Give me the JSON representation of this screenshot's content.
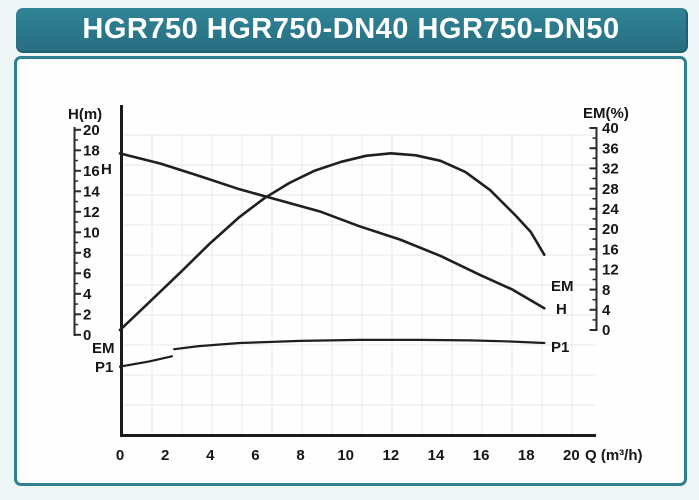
{
  "page": {
    "title": "HGR750 HGR750-DN40 HGR750-DN50"
  },
  "chart": {
    "left_axis": {
      "title": "H(m)",
      "ticks": [
        "20",
        "18",
        "16",
        "14",
        "12",
        "10",
        "8",
        "6",
        "4",
        "2",
        "0"
      ]
    },
    "right_axis": {
      "title": "EM(%)",
      "ticks": [
        "40",
        "36",
        "32",
        "28",
        "24",
        "20",
        "16",
        "12",
        "8",
        "4",
        "0"
      ]
    },
    "x_axis": {
      "ticks": [
        "0",
        "2",
        "4",
        "6",
        "8",
        "10",
        "12",
        "14",
        "16",
        "18",
        "20"
      ],
      "unit_label": "Q (m³/h)"
    },
    "curve_labels": {
      "h_left": "H",
      "em_left": "EM",
      "p1_left": "P1",
      "em_right": "EM",
      "h_right": "H",
      "p1_right": "P1"
    }
  },
  "colors": {
    "title_bar": "#2d7c8e",
    "panel_border": "#2e8191",
    "curve": "#1f1f1f",
    "axis": "#1b1b1b",
    "grid": "#e4eae6",
    "page_bg": "#eef6f5",
    "text": "#161616"
  },
  "chart_data": {
    "type": "line",
    "title": "HGR750 HGR750-DN40 HGR750-DN50",
    "xlabel": "Q (m³/h)",
    "xlim": [
      0,
      20
    ],
    "y_left": {
      "label": "H(m)",
      "lim": [
        0,
        20
      ]
    },
    "y_right": {
      "label": "EM(%)",
      "lim": [
        0,
        40
      ]
    },
    "grid": true,
    "legend": "curve-end labels (H, EM, P1 at both ends of each curve)",
    "series": [
      {
        "name": "H",
        "axis": "left",
        "unit": "m",
        "segments": [
          [
            [
              0,
              17.7
            ],
            [
              1.8,
              16.7
            ],
            [
              3.5,
              15.5
            ],
            [
              5.3,
              14.2
            ],
            [
              7.1,
              13.1
            ],
            [
              8.9,
              12.0
            ],
            [
              10.6,
              10.6
            ],
            [
              12.4,
              9.3
            ],
            [
              14.2,
              7.7
            ],
            [
              16.0,
              5.8
            ],
            [
              17.4,
              4.4
            ],
            [
              18.8,
              2.6
            ]
          ]
        ]
      },
      {
        "name": "EM",
        "axis": "right",
        "unit": "%",
        "segments": [
          [
            [
              0,
              0
            ],
            [
              1.3,
              5.5
            ],
            [
              2.7,
              11.5
            ],
            [
              4.0,
              17.2
            ],
            [
              5.3,
              22.4
            ],
            [
              6.4,
              26.1
            ],
            [
              7.5,
              29.1
            ],
            [
              8.6,
              31.5
            ],
            [
              9.8,
              33.3
            ],
            [
              10.9,
              34.5
            ],
            [
              12.0,
              35.0
            ],
            [
              13.1,
              34.6
            ],
            [
              14.2,
              33.5
            ],
            [
              15.3,
              31.3
            ],
            [
              16.4,
              27.7
            ],
            [
              17.5,
              22.8
            ],
            [
              18.2,
              19.4
            ],
            [
              18.8,
              14.9
            ]
          ]
        ]
      },
      {
        "name": "P1",
        "axis": "left",
        "unit": "no numeric scale shown; drawn below the zero line (values given on left-axis scale)",
        "segments": [
          [
            [
              0,
              -3.1
            ],
            [
              1.3,
              -2.6
            ],
            [
              2.3,
              -2.1
            ]
          ],
          [
            [
              2.4,
              -1.4
            ],
            [
              3.5,
              -1.1
            ],
            [
              5.3,
              -0.8
            ],
            [
              8.0,
              -0.6
            ],
            [
              10.6,
              -0.5
            ],
            [
              13.3,
              -0.5
            ],
            [
              15.5,
              -0.55
            ],
            [
              17.3,
              -0.65
            ],
            [
              18.8,
              -0.8
            ]
          ]
        ]
      }
    ]
  }
}
